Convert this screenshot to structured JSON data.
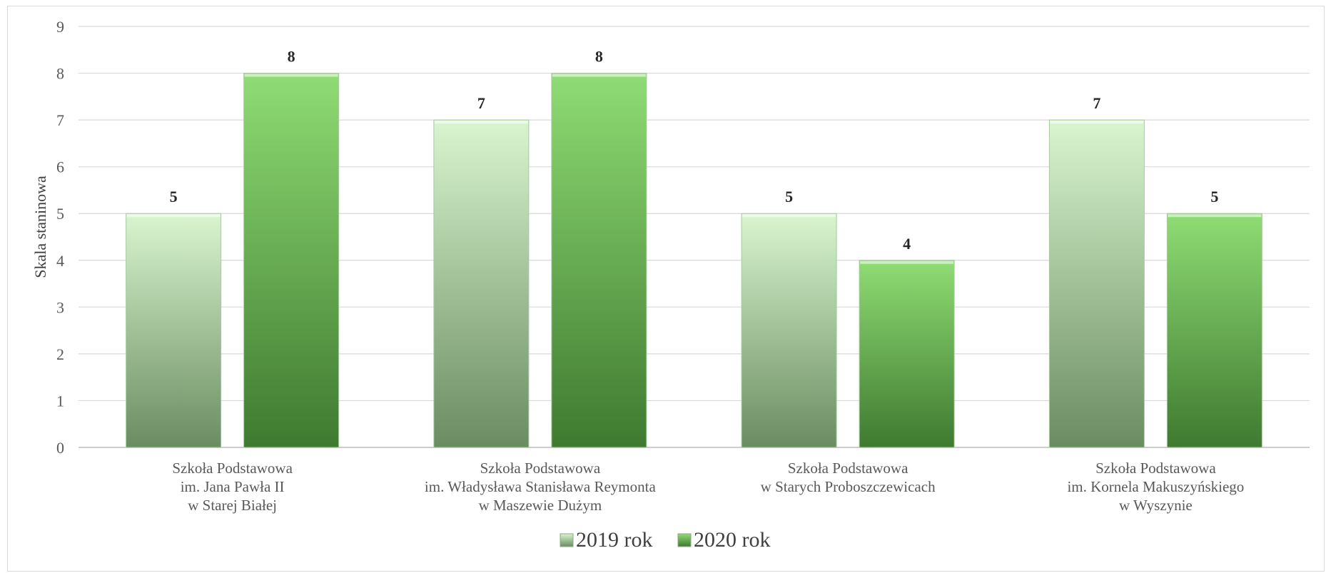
{
  "chart_data": {
    "type": "bar",
    "title": "",
    "xlabel": "",
    "ylabel": "Skala staninowa",
    "ylim": [
      0,
      9
    ],
    "yticks": [
      "0",
      "1",
      "2",
      "3",
      "4",
      "5",
      "6",
      "7",
      "8",
      "9"
    ],
    "grid": true,
    "legend_position": "bottom",
    "categories": [
      [
        "Szkoła Podstawowa",
        "im. Jana Pawła II",
        "w Starej Białej"
      ],
      [
        "Szkoła Podstawowa",
        "im. Władysława Stanisława Reymonta",
        "w Maszewie Dużym"
      ],
      [
        "Szkoła Podstawowa",
        "w Starych Proboszczewicach"
      ],
      [
        "Szkoła Podstawowa",
        "im. Kornela Makuszyńskiego",
        "w Wyszynie"
      ]
    ],
    "series": [
      {
        "name": "2019 rok",
        "values": [
          5,
          7,
          5,
          7
        ],
        "color_top": "#d8f5cf",
        "color_bottom": "#6b8c62"
      },
      {
        "name": "2020 rok",
        "values": [
          8,
          8,
          4,
          5
        ],
        "color_top": "#8fdc74",
        "color_bottom": "#3f7a30"
      }
    ]
  }
}
